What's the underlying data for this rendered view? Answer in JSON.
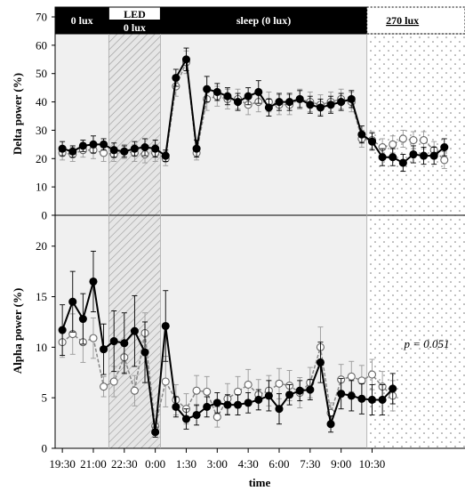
{
  "chart_data": [
    {
      "type": "line",
      "ylabel": "Delta power (%)",
      "ylim": [
        0,
        70
      ],
      "yticks": [
        0,
        10,
        20,
        30,
        40,
        50,
        60,
        70
      ],
      "x_tick_labels": [
        "19:30",
        "21:00",
        "22:30",
        "0:00",
        "1:30",
        "3:00",
        "4:30",
        "6:00",
        "7:30",
        "9:00",
        "10:30"
      ],
      "x_index_range": [
        -0.7,
        39
      ],
      "phases": [
        {
          "label": "0 lux",
          "start": -0.7,
          "end": 4.5,
          "fill": "#f0f0f0",
          "pattern": "none"
        },
        {
          "label": "LED 0 lux",
          "start": 4.5,
          "end": 9.5,
          "fill": "#e4e4e4",
          "pattern": "hatch"
        },
        {
          "label": "sleep (0 lux)",
          "start": 9.5,
          "end": 29.5,
          "fill": "#f0f0f0",
          "pattern": "none"
        },
        {
          "label": "270 lux",
          "start": 29.5,
          "end": 39,
          "fill": "#ffffff",
          "pattern": "dots"
        }
      ],
      "series": [
        {
          "style": "filled",
          "values": [
            23.5,
            22.5,
            24.5,
            25,
            25,
            23,
            22.5,
            23.5,
            24,
            23.5,
            21,
            48.5,
            55,
            23.5,
            44.5,
            43.5,
            42,
            40,
            42,
            43.5,
            38,
            40,
            40,
            41,
            39,
            38,
            39,
            40,
            41,
            28.5,
            26,
            20.5,
            20.5,
            18.5,
            21.5,
            21,
            21,
            24
          ],
          "errors": [
            2.5,
            2,
            2,
            3,
            2,
            2.5,
            2,
            2.5,
            3,
            3,
            2,
            3,
            4,
            3,
            4.5,
            3,
            3,
            3,
            3,
            4,
            3,
            3,
            3,
            3,
            3,
            3,
            3,
            3,
            3,
            3,
            3,
            3,
            3,
            3,
            3,
            3,
            3,
            3
          ]
        },
        {
          "style": "open",
          "values": [
            22,
            21.5,
            23,
            23,
            22,
            21.5,
            22.5,
            22,
            21.5,
            22,
            20,
            45.5,
            54,
            22,
            41,
            42,
            41,
            41,
            39,
            40,
            40,
            39,
            39,
            41,
            40,
            39,
            40,
            41,
            40,
            27,
            26.5,
            24,
            25,
            27,
            26.5,
            26.5,
            23,
            19.5
          ],
          "errors": [
            2.5,
            2.5,
            2.5,
            3,
            3,
            2.5,
            2.5,
            3,
            3,
            3,
            2.5,
            3.5,
            4,
            2.5,
            4,
            3.5,
            3.5,
            3.5,
            3.5,
            3.5,
            3.5,
            3.5,
            3.5,
            3.5,
            3.5,
            3.5,
            3.5,
            3.5,
            3.5,
            3,
            3,
            3,
            3,
            3,
            3,
            3,
            3,
            3
          ]
        }
      ]
    },
    {
      "type": "line",
      "ylabel": "Alpha power (%)",
      "xlabel": "time",
      "ylim": [
        0,
        22
      ],
      "yticks": [
        0,
        5,
        10,
        15,
        20
      ],
      "x_tick_labels": [
        "19:30",
        "21:00",
        "22:30",
        "0:00",
        "1:30",
        "3:00",
        "4:30",
        "6:00",
        "7:30",
        "9:00",
        "10:30"
      ],
      "x_index_range": [
        -0.7,
        39
      ],
      "annotation": "p = 0.051",
      "series": [
        {
          "style": "filled",
          "values": [
            11.7,
            14.5,
            12.8,
            16.5,
            9.8,
            10.6,
            10.4,
            11.6,
            9.5,
            1.6,
            12.1,
            4.1,
            2.9,
            3.3,
            4.1,
            4.5,
            4.3,
            4.3,
            4.5,
            4.8,
            5.2,
            3.9,
            5.3,
            5.7,
            5.8,
            8.5,
            2.4,
            5.4,
            5.2,
            4.9,
            4.8,
            4.8,
            5.9
          ],
          "errors": [
            2.5,
            3,
            2.5,
            3,
            2.5,
            3,
            3,
            3.5,
            3,
            0.5,
            3.5,
            1,
            1,
            1,
            1,
            1,
            1,
            1,
            1,
            1,
            1.5,
            1.5,
            1,
            1,
            1,
            2,
            0.8,
            1.5,
            1.5,
            1.5,
            1.5,
            1.5,
            1.5
          ],
          "x_index_start": 0
        },
        {
          "style": "open",
          "values": [
            10.5,
            11.3,
            10.5,
            10.9,
            6.1,
            6.6,
            9.0,
            5.7,
            11.4,
            2.2,
            6.6,
            4.8,
            3.9,
            5.7,
            5.6,
            3.1,
            4.9,
            5.6,
            6.3,
            5.3,
            5.7,
            6.4,
            6.2,
            5.5,
            6.5,
            10.0,
            3.5,
            6.8,
            7.1,
            6.7,
            7.3,
            6.1,
            5.2
          ],
          "errors": [
            1.5,
            2,
            2,
            2,
            1,
            1.5,
            1.5,
            1.5,
            2,
            0.5,
            2.5,
            1.5,
            1.5,
            1.5,
            1.5,
            1,
            1.5,
            1.5,
            1.5,
            1.5,
            1.5,
            1.5,
            1.5,
            1.5,
            1.5,
            2,
            1,
            1.5,
            1.5,
            1.5,
            1.5,
            1.5,
            1.5
          ]
        }
      ]
    }
  ],
  "colors": {
    "filled": "#000000",
    "open_line": "#888888",
    "open_fill": "#ffffff",
    "error_open": "#999999",
    "band_dark": "#000000"
  }
}
